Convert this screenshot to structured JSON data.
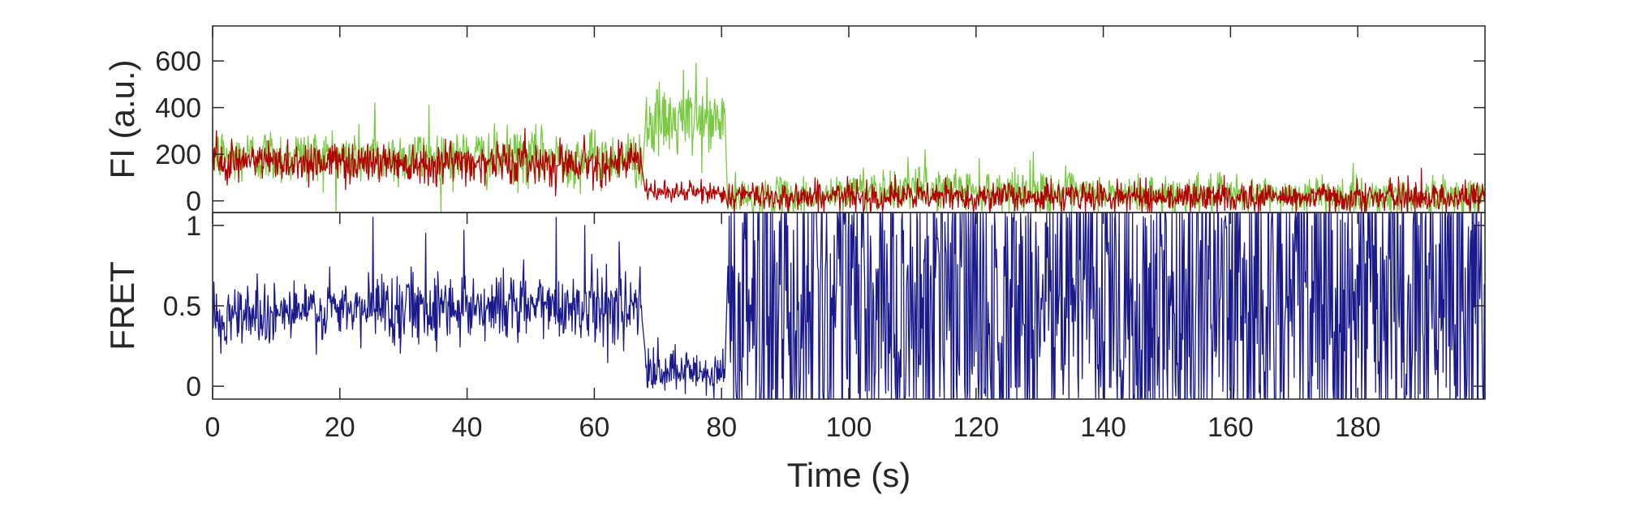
{
  "chart_data": [
    {
      "type": "line",
      "panel": "top",
      "title": "",
      "xlabel": "",
      "ylabel": "FI (a.u.)",
      "xlim": [
        0,
        200
      ],
      "ylim": [
        -50,
        750
      ],
      "yticks": [
        0,
        200,
        400,
        600
      ],
      "ytick_labels": [
        "0",
        "200",
        "400",
        "600"
      ],
      "grid": false,
      "legend": "none",
      "series": [
        {
          "color": "#7ac943",
          "segments": [
            {
              "x": [
                0,
                67.5
              ],
              "mean": [
                195,
                180
              ],
              "noise": 60
            },
            {
              "x": [
                68,
                80.5
              ],
              "mean": [
                330,
                340
              ],
              "noise": 75
            },
            {
              "x": [
                81,
                100
              ],
              "mean": [
                10,
                25
              ],
              "noise": 40
            },
            {
              "x": [
                100,
                135
              ],
              "mean": [
                55,
                40
              ],
              "noise": 45
            },
            {
              "x": [
                135,
                200
              ],
              "mean": [
                30,
                20
              ],
              "noise": 40
            }
          ],
          "spikes": [
            [
              25.5,
              420
            ],
            [
              34,
              410
            ],
            [
              76,
              590
            ],
            [
              74,
              560
            ],
            [
              129,
              210
            ],
            [
              112,
              220
            ]
          ]
        },
        {
          "color": "#b30000",
          "segments": [
            {
              "x": [
                0,
                67.5
              ],
              "mean": [
                170,
                165
              ],
              "noise": 45
            },
            {
              "x": [
                68,
                80.5
              ],
              "mean": [
                40,
                35
              ],
              "noise": 22
            },
            {
              "x": [
                81,
                200
              ],
              "mean": [
                20,
                15
              ],
              "noise": 32
            }
          ],
          "spikes": [
            [
              0.6,
              300
            ],
            [
              190,
              140
            ]
          ]
        }
      ]
    },
    {
      "type": "line",
      "panel": "bottom",
      "title": "",
      "xlabel": "Time (s)",
      "ylabel": "FRET",
      "xlim": [
        0,
        200
      ],
      "ylim": [
        -0.08,
        1.08
      ],
      "xticks": [
        0,
        20,
        40,
        60,
        80,
        100,
        120,
        140,
        160,
        180
      ],
      "xtick_labels": [
        "0",
        "20",
        "40",
        "60",
        "80",
        "100",
        "120",
        "140",
        "160",
        "180"
      ],
      "yticks": [
        0,
        0.5,
        1
      ],
      "ytick_labels": [
        "0",
        "0.5",
        "1"
      ],
      "grid": false,
      "legend": "none",
      "series": [
        {
          "color": "#1a1a8c",
          "segments": [
            {
              "x": [
                0,
                25
              ],
              "mean": [
                0.45,
                0.47
              ],
              "noise": 0.1
            },
            {
              "x": [
                25,
                67.5
              ],
              "mean": [
                0.5,
                0.5
              ],
              "noise": 0.11
            },
            {
              "x": [
                68,
                80.5
              ],
              "mean": [
                0.08,
                0.07
              ],
              "noise": 0.08
            },
            {
              "x": [
                81,
                200
              ],
              "mean": [
                0.5,
                0.5
              ],
              "noise": 0.7
            }
          ],
          "spikes": [
            [
              25.2,
              1.05
            ],
            [
              33.5,
              0.95
            ],
            [
              39.5,
              0.97
            ],
            [
              54,
              1.05
            ],
            [
              58.5,
              1.0
            ]
          ]
        }
      ]
    }
  ]
}
